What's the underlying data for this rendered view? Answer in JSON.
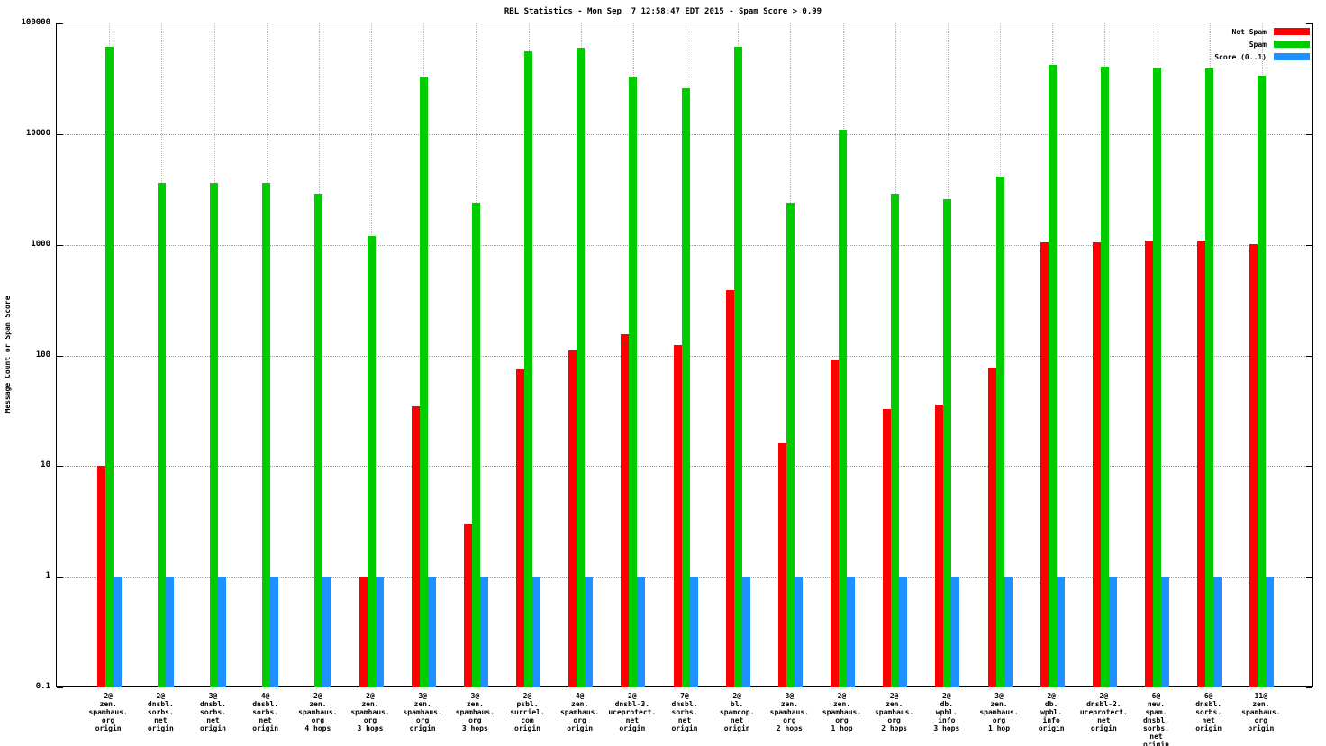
{
  "chart_data": {
    "type": "bar",
    "title": "RBL Statistics - Mon Sep  7 12:58:47 EDT 2015 - Spam Score > 0.99",
    "ylabel": "Message Count or Spam Score",
    "y_scale": "log",
    "ylim": [
      0.1,
      100000
    ],
    "yticks": [
      0.1,
      1,
      10,
      100,
      1000,
      10000,
      100000
    ],
    "ytick_labels": [
      "0.1",
      "1",
      "10",
      "100",
      "1000",
      "10000",
      "100000"
    ],
    "grid": true,
    "legend_position": "top-right",
    "categories": [
      [
        "2@",
        "zen.",
        "spamhaus.",
        "org",
        "origin"
      ],
      [
        "2@",
        "dnsbl.",
        "sorbs.",
        "net",
        "origin"
      ],
      [
        "3@",
        "dnsbl.",
        "sorbs.",
        "net",
        "origin"
      ],
      [
        "4@",
        "dnsbl.",
        "sorbs.",
        "net",
        "origin"
      ],
      [
        "2@",
        "zen.",
        "spamhaus.",
        "org",
        "4 hops"
      ],
      [
        "2@",
        "zen.",
        "spamhaus.",
        "org",
        "3 hops"
      ],
      [
        "3@",
        "zen.",
        "spamhaus.",
        "org",
        "origin"
      ],
      [
        "3@",
        "zen.",
        "spamhaus.",
        "org",
        "3 hops"
      ],
      [
        "2@",
        "psbl.",
        "surriel.",
        "com",
        "origin"
      ],
      [
        "4@",
        "zen.",
        "spamhaus.",
        "org",
        "origin"
      ],
      [
        "2@",
        "dnsbl-3.",
        "uceprotect.",
        "net",
        "origin"
      ],
      [
        "7@",
        "dnsbl.",
        "sorbs.",
        "net",
        "origin"
      ],
      [
        "2@",
        "bl.",
        "spamcop.",
        "net",
        "origin"
      ],
      [
        "3@",
        "zen.",
        "spamhaus.",
        "org",
        "2 hops"
      ],
      [
        "2@",
        "zen.",
        "spamhaus.",
        "org",
        "1 hop"
      ],
      [
        "2@",
        "zen.",
        "spamhaus.",
        "org",
        "2 hops"
      ],
      [
        "2@",
        "db.",
        "wpbl.",
        "info",
        "3 hops"
      ],
      [
        "3@",
        "zen.",
        "spamhaus.",
        "org",
        "1 hop"
      ],
      [
        "2@",
        "db.",
        "wpbl.",
        "info",
        "origin"
      ],
      [
        "2@",
        "dnsbl-2.",
        "uceprotect.",
        "net",
        "origin"
      ],
      [
        "6@",
        "new.",
        "spam.",
        "dnsbl.",
        "sorbs.",
        "net",
        "origin"
      ],
      [
        "6@",
        "dnsbl.",
        "sorbs.",
        "net",
        "origin"
      ],
      [
        "11@",
        "zen.",
        "spamhaus.",
        "org",
        "origin"
      ]
    ],
    "series": [
      {
        "name": "Not Spam",
        "color": "#ff0000",
        "values": [
          10,
          null,
          null,
          null,
          null,
          1,
          35,
          3,
          75,
          110,
          155,
          125,
          390,
          16,
          90,
          33,
          36,
          78,
          1050,
          1050,
          1100,
          1100,
          1020
        ]
      },
      {
        "name": "Spam",
        "color": "#00cc00",
        "values": [
          62000,
          3600,
          3600,
          3600,
          2900,
          1200,
          33000,
          2400,
          56000,
          60000,
          33000,
          26000,
          62000,
          2400,
          11000,
          2900,
          2600,
          4100,
          42000,
          41000,
          40000,
          39000,
          34000
        ]
      },
      {
        "name": "Score (0..1)",
        "color": "#1e90ff",
        "values": [
          1,
          1,
          1,
          1,
          1,
          1,
          1,
          1,
          1,
          1,
          1,
          1,
          1,
          1,
          1,
          1,
          1,
          1,
          1,
          1,
          1,
          1,
          1
        ]
      }
    ]
  }
}
